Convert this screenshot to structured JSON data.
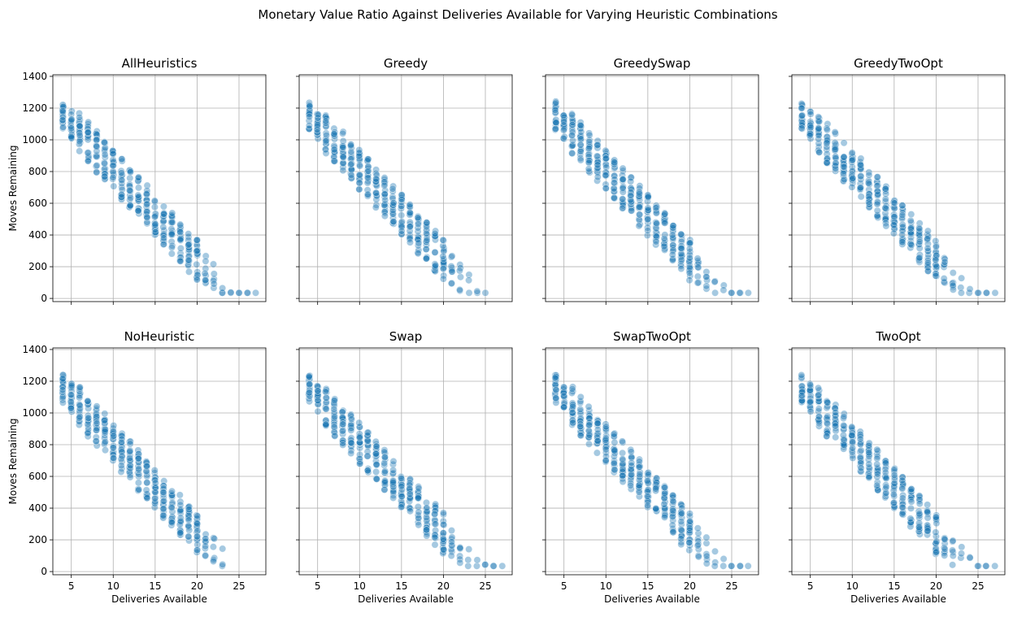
{
  "figure": {
    "title": "Monetary Value Ratio Against Deliveries Available for Varying Heuristic Combinations"
  },
  "style": {
    "point_color": "#1f77b4",
    "point_alpha": 0.4,
    "grid_color": "#b0b0b0"
  },
  "chart_data": [
    {
      "type": "scatter",
      "title": "AllHeuristics",
      "xlabel": "",
      "ylabel": "Moves Remaining",
      "xlim": [
        2.8,
        28.2
      ],
      "ylim": [
        -20,
        1410
      ],
      "xmax": 27,
      "grid": true,
      "x_ticks": [
        5,
        10,
        15,
        20,
        25
      ],
      "x_tick_labels_shown": false,
      "y_ticks": [
        0,
        200,
        400,
        600,
        800,
        1000,
        1200,
        1400
      ],
      "y_tick_labels_shown": true
    },
    {
      "type": "scatter",
      "title": "Greedy",
      "xlabel": "",
      "ylabel": "",
      "xlim": [
        2.8,
        28.2
      ],
      "ylim": [
        -20,
        1410
      ],
      "xmax": 25,
      "grid": true,
      "x_ticks": [
        5,
        10,
        15,
        20,
        25
      ],
      "x_tick_labels_shown": false,
      "y_ticks": [
        0,
        200,
        400,
        600,
        800,
        1000,
        1200,
        1400
      ],
      "y_tick_labels_shown": false
    },
    {
      "type": "scatter",
      "title": "GreedySwap",
      "xlabel": "",
      "ylabel": "",
      "xlim": [
        2.8,
        28.2
      ],
      "ylim": [
        -20,
        1410
      ],
      "xmax": 27,
      "grid": true,
      "x_ticks": [
        5,
        10,
        15,
        20,
        25
      ],
      "x_tick_labels_shown": false,
      "y_ticks": [
        0,
        200,
        400,
        600,
        800,
        1000,
        1200,
        1400
      ],
      "y_tick_labels_shown": false
    },
    {
      "type": "scatter",
      "title": "GreedyTwoOpt",
      "xlabel": "",
      "ylabel": "",
      "xlim": [
        2.8,
        28.2
      ],
      "ylim": [
        -20,
        1410
      ],
      "xmax": 27,
      "grid": true,
      "x_ticks": [
        5,
        10,
        15,
        20,
        25
      ],
      "x_tick_labels_shown": false,
      "y_ticks": [
        0,
        200,
        400,
        600,
        800,
        1000,
        1200,
        1400
      ],
      "y_tick_labels_shown": false
    },
    {
      "type": "scatter",
      "title": "NoHeuristic",
      "xlabel": "Deliveries Available",
      "ylabel": "Moves Remaining",
      "xlim": [
        2.8,
        28.2
      ],
      "ylim": [
        -20,
        1410
      ],
      "xmax": 23,
      "grid": true,
      "x_ticks": [
        5,
        10,
        15,
        20,
        25
      ],
      "x_tick_labels_shown": true,
      "y_ticks": [
        0,
        200,
        400,
        600,
        800,
        1000,
        1200,
        1400
      ],
      "y_tick_labels_shown": true
    },
    {
      "type": "scatter",
      "title": "Swap",
      "xlabel": "Deliveries Available",
      "ylabel": "",
      "xlim": [
        2.8,
        28.2
      ],
      "ylim": [
        -20,
        1410
      ],
      "xmax": 27,
      "grid": true,
      "x_ticks": [
        5,
        10,
        15,
        20,
        25
      ],
      "x_tick_labels_shown": true,
      "y_ticks": [
        0,
        200,
        400,
        600,
        800,
        1000,
        1200,
        1400
      ],
      "y_tick_labels_shown": false
    },
    {
      "type": "scatter",
      "title": "SwapTwoOpt",
      "xlabel": "Deliveries Available",
      "ylabel": "",
      "xlim": [
        2.8,
        28.2
      ],
      "ylim": [
        -20,
        1410
      ],
      "xmax": 27,
      "grid": true,
      "x_ticks": [
        5,
        10,
        15,
        20,
        25
      ],
      "x_tick_labels_shown": true,
      "y_ticks": [
        0,
        200,
        400,
        600,
        800,
        1000,
        1200,
        1400
      ],
      "y_tick_labels_shown": false
    },
    {
      "type": "scatter",
      "title": "TwoOpt",
      "xlabel": "Deliveries Available",
      "ylabel": "",
      "xlim": [
        2.8,
        28.2
      ],
      "ylim": [
        -20,
        1410
      ],
      "xmax": 27,
      "grid": true,
      "x_ticks": [
        5,
        10,
        15,
        20,
        25
      ],
      "x_tick_labels_shown": true,
      "y_ticks": [
        0,
        200,
        400,
        600,
        800,
        1000,
        1200,
        1400
      ],
      "y_tick_labels_shown": false
    }
  ]
}
